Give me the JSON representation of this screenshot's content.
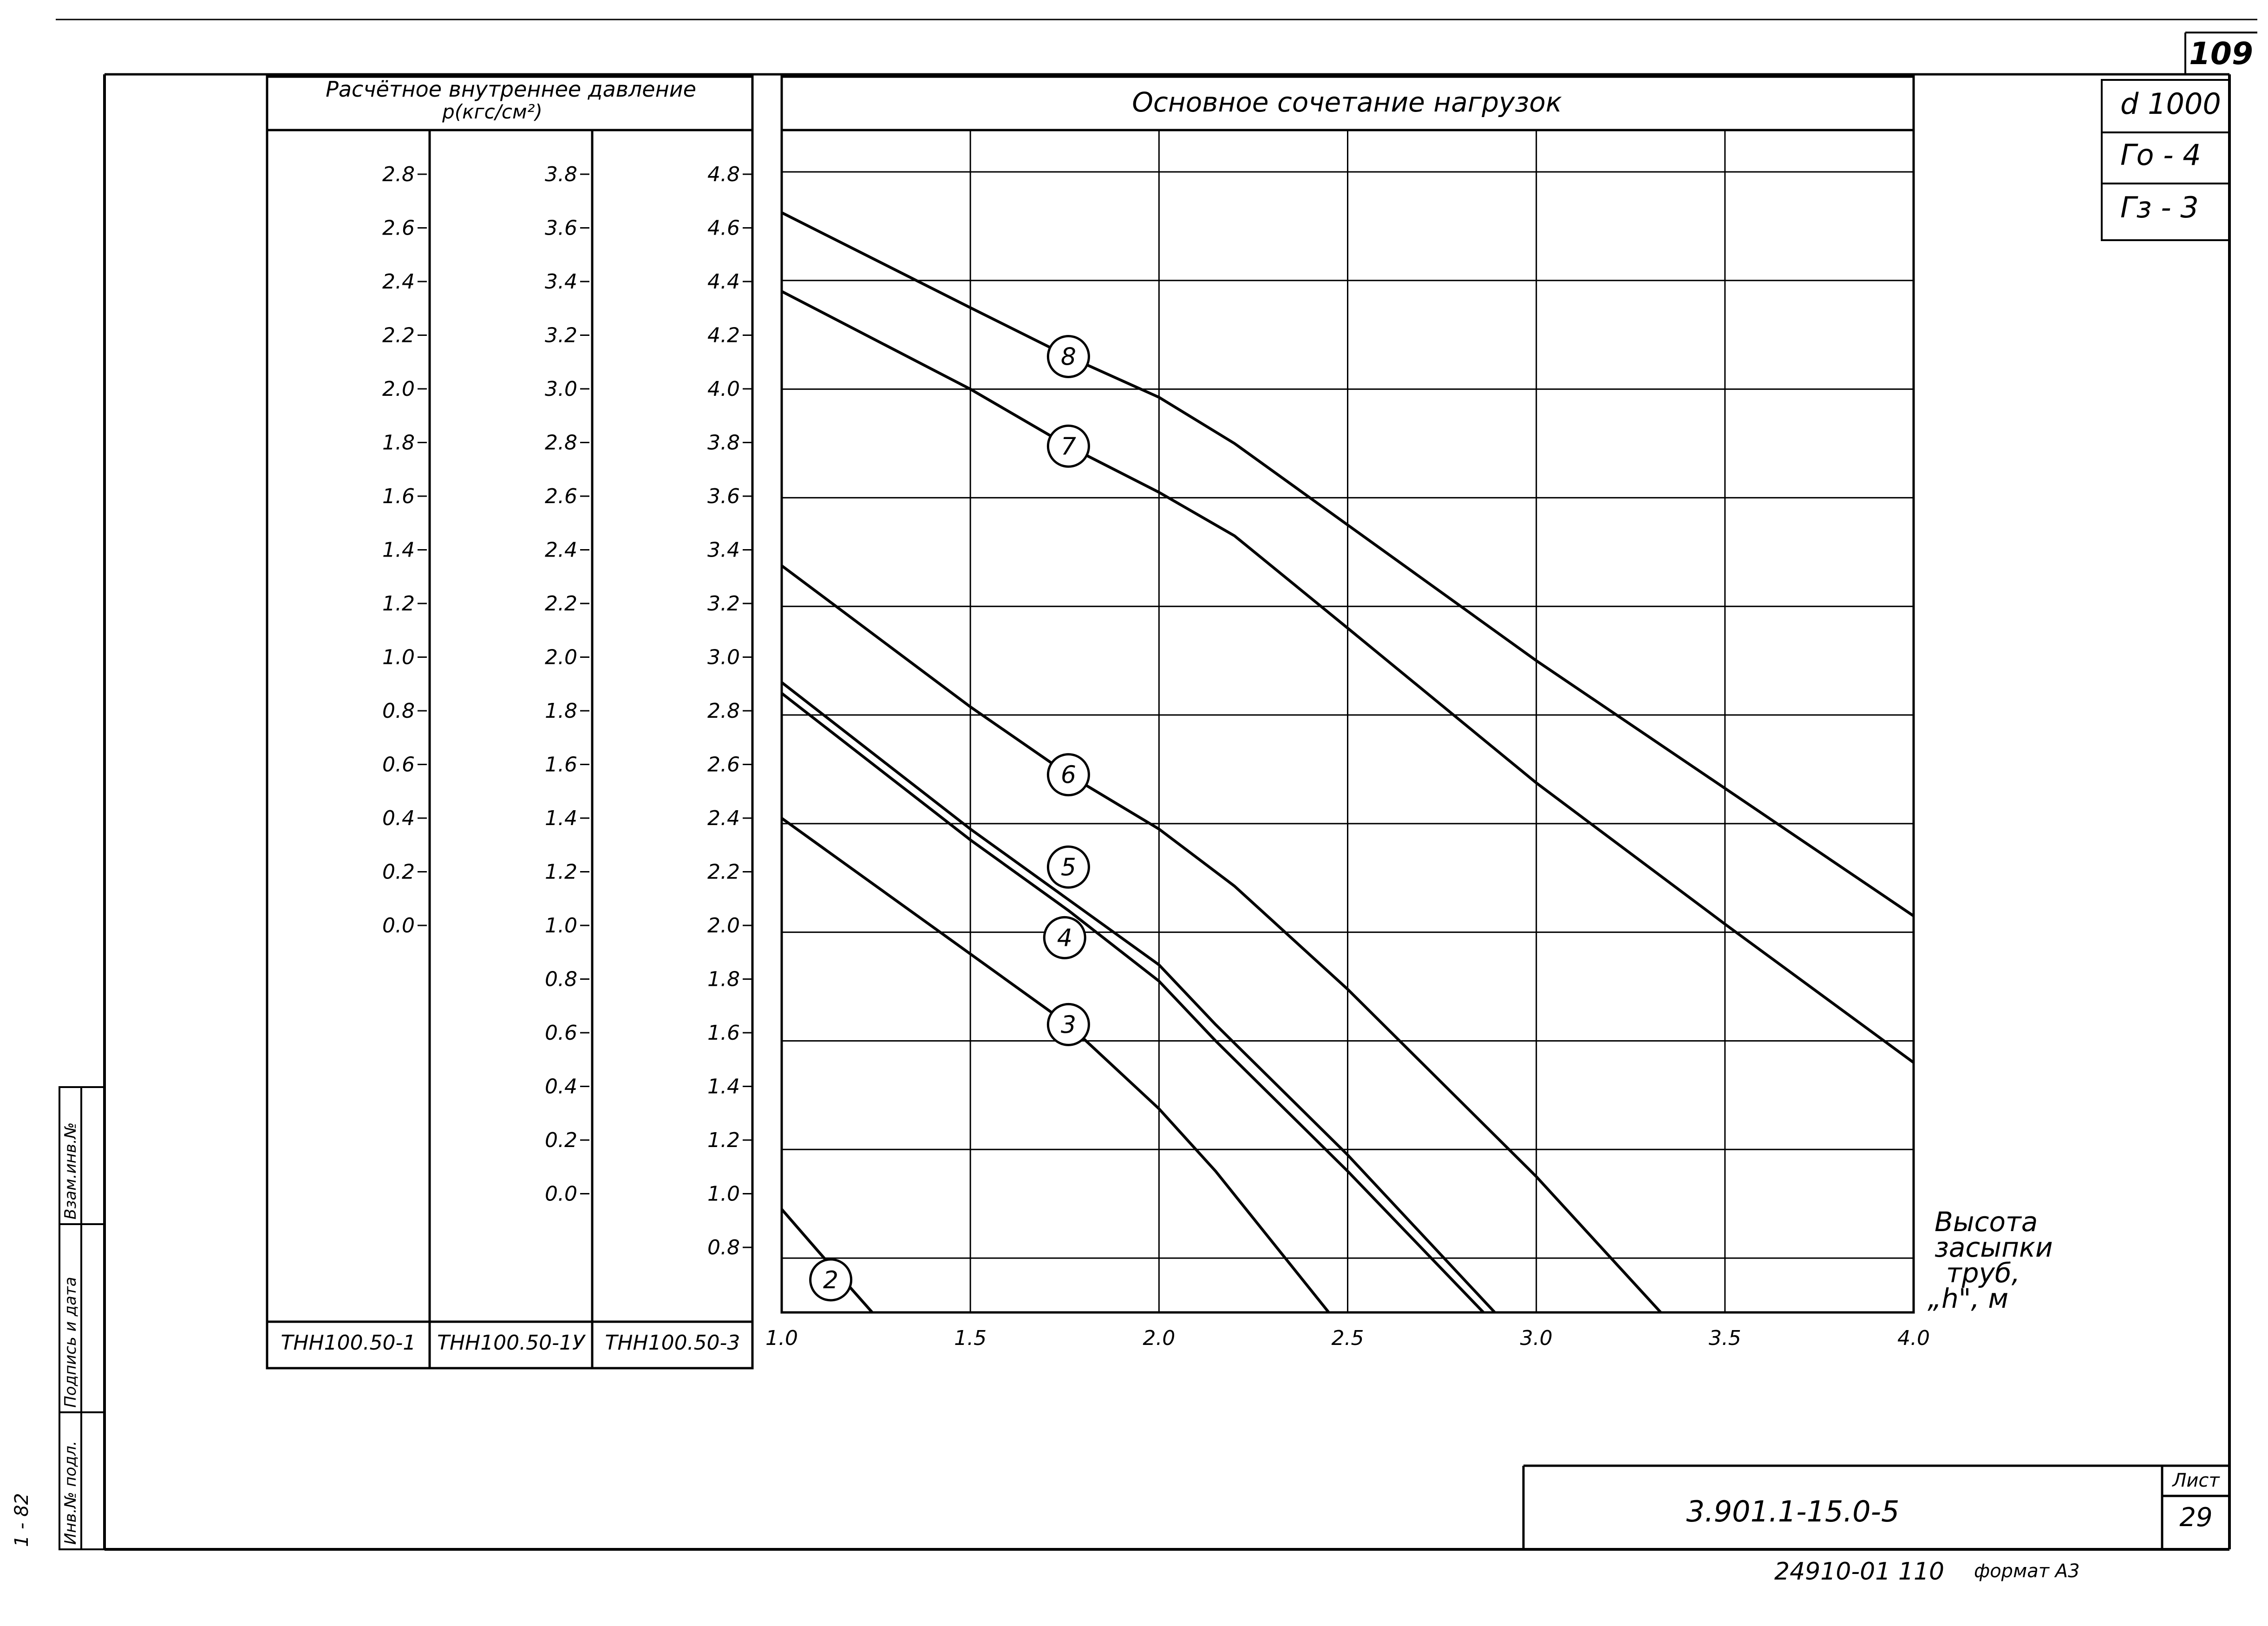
{
  "sheet": {
    "page_number": "109",
    "top_right_cells": [
      "d 1000",
      "Γo - 4",
      "Γз - 3"
    ],
    "title_block_code": "3.901.1-15.0-5",
    "title_block_sheet_label": "Лист",
    "title_block_sheet_number": "29",
    "bottom_note": "24910-01  110",
    "format_note": "формат A3",
    "side_stamp_labels": [
      "Инв.№ подл.",
      "Подпись и дата",
      "Взам.инв.№"
    ],
    "side_code": "1 - 82"
  },
  "pressure_table": {
    "header": "Расчётное внутреннее давление р(кгс/см²)",
    "header_line1": "Расчётное  внутреннее  давление",
    "header_line2": "р(кгс/см²)",
    "columns": [
      {
        "name": "ТНН100.50-1",
        "ticks": [
          "2.8",
          "2.6",
          "2.4",
          "2.2",
          "2.0",
          "1.8",
          "1.6",
          "1.4",
          "1.2",
          "1.0",
          "0.8",
          "0.6",
          "0.4",
          "0.2",
          "0.0"
        ]
      },
      {
        "name": "ТНН100.50-1У",
        "ticks": [
          "3.8",
          "3.6",
          "3.4",
          "3.2",
          "3.0",
          "2.8",
          "2.6",
          "2.4",
          "2.2",
          "2.0",
          "1.8",
          "1.6",
          "1.4",
          "1.2",
          "1.0",
          "0.8",
          "0.6",
          "0.4",
          "0.2",
          "0.0"
        ]
      },
      {
        "name": "ТНН100.50-3",
        "ticks": [
          "4.8",
          "4.6",
          "4.4",
          "4.2",
          "4.0",
          "3.8",
          "3.6",
          "3.4",
          "3.2",
          "3.0",
          "2.8",
          "2.6",
          "2.4",
          "2.2",
          "2.0",
          "1.8",
          "1.6",
          "1.4",
          "1.2",
          "1.0",
          "0.8"
        ]
      }
    ]
  },
  "chart_data": {
    "type": "line",
    "title": "Основное сочетание нагрузок",
    "xlabel": "Высота засыпки труб, \"h\", м",
    "xlabel_lines": [
      "Высота",
      "засыпки",
      "труб,",
      "„h\", м"
    ],
    "xlim": [
      1.0,
      4.0
    ],
    "ylim": [
      0.6,
      4.8
    ],
    "x_ticks": [
      "1.0",
      "1.5",
      "2.0",
      "2.5",
      "3.0",
      "3.5",
      "4.0"
    ],
    "x_tick_values": [
      1.0,
      1.5,
      2.0,
      2.5,
      3.0,
      3.5,
      4.0
    ],
    "grid": true,
    "y_units_note": "y values expressed on the ТНН100.50-3 pressure scale",
    "series": [
      {
        "name": "2",
        "x": [
          1.0,
          1.1,
          1.24
        ],
        "y": [
          0.98,
          0.82,
          0.6
        ]
      },
      {
        "name": "3",
        "x": [
          1.0,
          1.5,
          1.76,
          2.0,
          2.15,
          2.3,
          2.45
        ],
        "y": [
          2.42,
          1.92,
          1.66,
          1.35,
          1.12,
          0.86,
          0.6
        ]
      },
      {
        "name": "4",
        "x": [
          1.0,
          1.5,
          1.76,
          2.0,
          2.15,
          2.5,
          2.86
        ],
        "y": [
          2.88,
          2.34,
          2.08,
          1.82,
          1.6,
          1.12,
          0.6
        ]
      },
      {
        "name": "5",
        "x": [
          1.0,
          1.5,
          1.76,
          2.0,
          2.15,
          2.5,
          2.89
        ],
        "y": [
          2.92,
          2.38,
          2.12,
          1.88,
          1.66,
          1.18,
          0.6
        ]
      },
      {
        "name": "6",
        "x": [
          1.0,
          1.5,
          1.76,
          2.0,
          2.2,
          2.5,
          3.0,
          3.33
        ],
        "y": [
          3.35,
          2.83,
          2.58,
          2.38,
          2.17,
          1.79,
          1.1,
          0.6
        ]
      },
      {
        "name": "7",
        "x": [
          1.0,
          1.5,
          1.76,
          2.0,
          2.2,
          2.5,
          3.0,
          3.5,
          4.0
        ],
        "y": [
          4.36,
          4.0,
          3.79,
          3.62,
          3.46,
          3.12,
          2.55,
          2.03,
          1.52
        ]
      },
      {
        "name": "8",
        "x": [
          1.0,
          1.5,
          1.76,
          2.0,
          2.2,
          2.5,
          3.0,
          3.5,
          4.0
        ],
        "y": [
          4.65,
          4.3,
          4.12,
          3.97,
          3.8,
          3.5,
          3.0,
          2.53,
          2.06
        ]
      }
    ],
    "curve_labels": [
      {
        "label": "8",
        "x": 1.76,
        "y": 4.12
      },
      {
        "label": "7",
        "x": 1.76,
        "y": 3.79
      },
      {
        "label": "6",
        "x": 1.76,
        "y": 2.58
      },
      {
        "label": "5",
        "x": 1.76,
        "y": 2.24
      },
      {
        "label": "4",
        "x": 1.75,
        "y": 1.98
      },
      {
        "label": "3",
        "x": 1.76,
        "y": 1.66
      },
      {
        "label": "2",
        "x": 1.13,
        "y": 0.72
      }
    ]
  }
}
